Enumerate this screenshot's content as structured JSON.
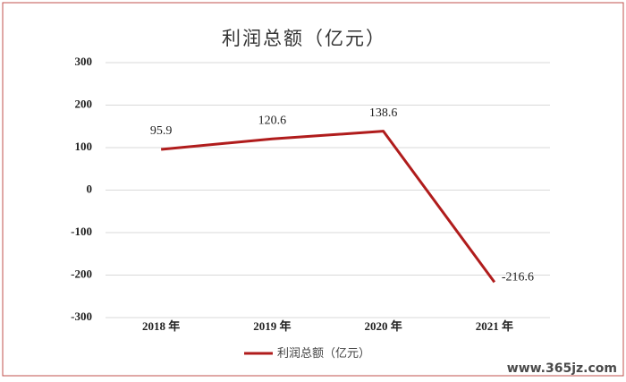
{
  "chart_data": {
    "type": "line",
    "title": "利润总额（亿元）",
    "categories": [
      "2018 年",
      "2019 年",
      "2020 年",
      "2021 年"
    ],
    "series": [
      {
        "name": "利润总额（亿元）",
        "color": "#b01c1c",
        "values": [
          95.9,
          120.6,
          138.6,
          -216.6
        ]
      }
    ],
    "ylim": [
      -300,
      300
    ],
    "yticks": [
      -300,
      -200,
      -100,
      0,
      100,
      200,
      300
    ],
    "grid": true,
    "legend": "bottom",
    "watermark": "www.365jz.com"
  }
}
